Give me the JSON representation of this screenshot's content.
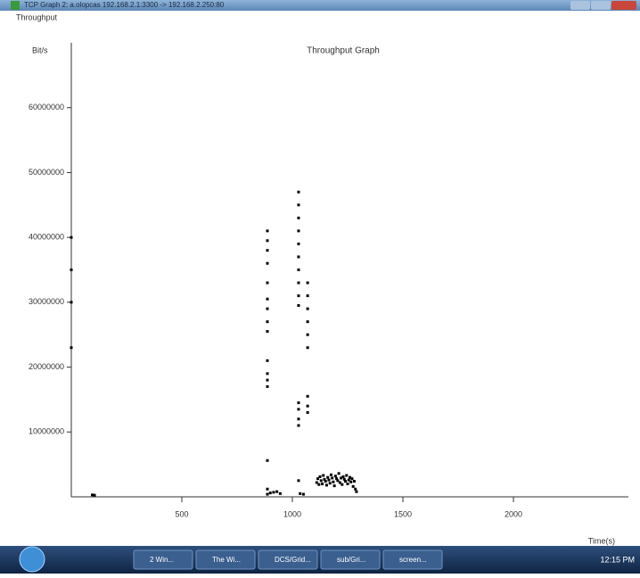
{
  "window": {
    "title": "TCP Graph 2: a.olopcas 192.168.2.1:3300 -> 192.168.2.250:80"
  },
  "chart_data": {
    "type": "scatter",
    "title": "Throughput Graph",
    "y_label": "Throughput",
    "y_unit": "Bit/s",
    "x_label": "Time(s)",
    "color": "#000000",
    "xlim": [
      0,
      2520
    ],
    "ylim": [
      0,
      70000000
    ],
    "xticks": [
      500,
      1000,
      1500,
      2000
    ],
    "yticks": [
      10000000,
      20000000,
      30000000,
      40000000,
      50000000,
      60000000
    ],
    "x": [
      0,
      0,
      0,
      0,
      95,
      105,
      887,
      887,
      887,
      887,
      887,
      887,
      887,
      887,
      887,
      887,
      887,
      887,
      887,
      887,
      887,
      887,
      900,
      915,
      930,
      945,
      1028,
      1028,
      1028,
      1028,
      1028,
      1028,
      1028,
      1028,
      1028,
      1028,
      1028,
      1028,
      1028,
      1028,
      1028,
      1035,
      1050,
      1069,
      1069,
      1069,
      1069,
      1069,
      1069,
      1069,
      1069,
      1069,
      1110,
      1115,
      1120,
      1125,
      1130,
      1135,
      1140,
      1145,
      1150,
      1155,
      1160,
      1165,
      1170,
      1175,
      1180,
      1185,
      1190,
      1195,
      1200,
      1205,
      1210,
      1215,
      1220,
      1225,
      1230,
      1235,
      1240,
      1245,
      1250,
      1255,
      1260,
      1265,
      1270,
      1275,
      1280,
      1285,
      1290
    ],
    "values": [
      23000000,
      30000000,
      35000000,
      40000000,
      300000,
      250000,
      41000000,
      39500000,
      38000000,
      36000000,
      33000000,
      30500000,
      29000000,
      27000000,
      25500000,
      21000000,
      19000000,
      18000000,
      17000000,
      5600000,
      1200000,
      400000,
      600000,
      700000,
      800000,
      500000,
      47000000,
      45000000,
      43000000,
      41000000,
      39000000,
      37000000,
      35000000,
      33000000,
      31000000,
      29500000,
      14500000,
      13500000,
      12000000,
      11000000,
      2500000,
      500000,
      400000,
      33000000,
      31000000,
      29000000,
      27000000,
      25000000,
      23000000,
      15500000,
      14000000,
      13000000,
      2200000,
      2800000,
      1900000,
      3100000,
      2500000,
      2000000,
      3300000,
      2700000,
      2400000,
      1800000,
      3000000,
      2600000,
      2100000,
      3400000,
      2900000,
      2300000,
      1700000,
      3200000,
      2800000,
      2500000,
      3600000,
      2200000,
      2900000,
      1900000,
      3100000,
      2700000,
      2400000,
      3300000,
      2000000,
      2600000,
      3000000,
      2300000,
      2800000,
      1600000,
      2400000,
      1200000,
      800000
    ]
  },
  "taskbar": {
    "buttons": [
      "2 Win...",
      "The Wi...",
      "DCS/Grid...",
      "sub/Gri...",
      "screen..."
    ],
    "clock": "12:15 PM"
  }
}
